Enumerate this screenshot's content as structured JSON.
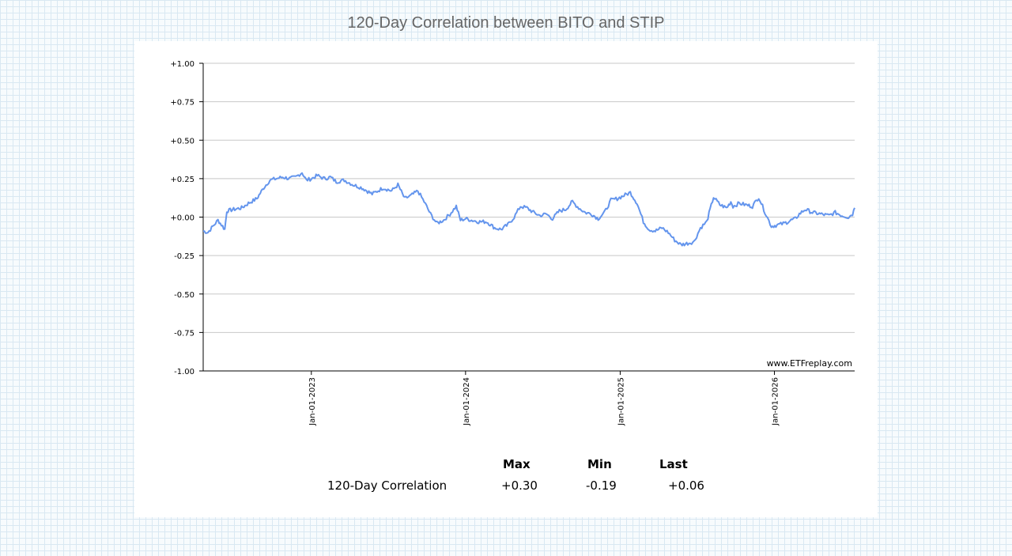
{
  "title": "120-Day Correlation between BITO and STIP",
  "watermark": "www.ETFreplay.com",
  "colors": {
    "line": "#6495ED",
    "grid": "#c8c8c8",
    "axis": "#000000"
  },
  "chart_data": {
    "type": "line",
    "title": "120-Day Correlation between BITO and STIP",
    "xlabel": "",
    "ylabel": "",
    "ylim": [
      -1.0,
      1.0
    ],
    "xlim": [
      "2022-04-20",
      "2026-07-10"
    ],
    "y_ticks": [
      "+1.00",
      "+0.75",
      "+0.50",
      "+0.25",
      "+0.00",
      "-0.25",
      "-0.50",
      "-0.75",
      "-1.00"
    ],
    "y_tick_values": [
      1.0,
      0.75,
      0.5,
      0.25,
      0.0,
      -0.25,
      -0.5,
      -0.75,
      -1.0
    ],
    "x_ticks": [
      "Jan-01-2023",
      "Jan-01-2024",
      "Jan-01-2025",
      "Jan-01-2026"
    ],
    "x_tick_values": [
      "2023-01-01",
      "2024-01-01",
      "2025-01-01",
      "2026-01-01"
    ],
    "grid": true,
    "series": [
      {
        "x": [
          "2022-04-20",
          "2022-05-01",
          "2022-05-10",
          "2022-05-25",
          "2022-06-05",
          "2022-06-10",
          "2022-06-15",
          "2022-07-01",
          "2022-07-20",
          "2022-08-05",
          "2022-08-25",
          "2022-09-10",
          "2022-09-25",
          "2022-10-10",
          "2022-10-25",
          "2022-11-10",
          "2022-11-25",
          "2022-12-10",
          "2022-12-20",
          "2023-01-01",
          "2023-01-15",
          "2023-02-01",
          "2023-02-15",
          "2023-03-01",
          "2023-03-20",
          "2023-04-10",
          "2023-05-01",
          "2023-05-25",
          "2023-06-20",
          "2023-07-10",
          "2023-07-25",
          "2023-08-10",
          "2023-08-25",
          "2023-09-10",
          "2023-09-25",
          "2023-10-10",
          "2023-10-25",
          "2023-11-10",
          "2023-11-25",
          "2023-12-10",
          "2023-12-20",
          "2024-01-01",
          "2024-01-15",
          "2024-02-01",
          "2024-02-20",
          "2024-03-10",
          "2024-03-25",
          "2024-04-10",
          "2024-04-25",
          "2024-05-10",
          "2024-05-25",
          "2024-06-10",
          "2024-06-25",
          "2024-07-10",
          "2024-07-25",
          "2024-08-10",
          "2024-08-25",
          "2024-09-10",
          "2024-09-25",
          "2024-10-10",
          "2024-10-25",
          "2024-11-10",
          "2024-11-25",
          "2024-12-10",
          "2024-12-25",
          "2025-01-10",
          "2025-01-25",
          "2025-02-10",
          "2025-02-25",
          "2025-03-10",
          "2025-03-25",
          "2025-04-10",
          "2025-04-25",
          "2025-05-10",
          "2025-05-25",
          "2025-06-10",
          "2025-06-25",
          "2025-07-10",
          "2025-07-25",
          "2025-08-10",
          "2025-08-25",
          "2025-09-10",
          "2025-09-20",
          "2025-09-25",
          "2025-10-10",
          "2025-10-25",
          "2025-11-10",
          "2025-11-25",
          "2025-12-10",
          "2025-12-25",
          "2026-01-10",
          "2026-01-25",
          "2026-02-10",
          "2026-02-20",
          "2026-03-01",
          "2026-03-15",
          "2026-04-01",
          "2026-04-20",
          "2026-05-10",
          "2026-05-25",
          "2026-06-10",
          "2026-06-25",
          "2026-07-05",
          "2026-07-10"
        ],
        "y": [
          -0.09,
          -0.1,
          -0.07,
          -0.02,
          -0.06,
          -0.08,
          0.04,
          0.05,
          0.06,
          0.09,
          0.12,
          0.19,
          0.24,
          0.25,
          0.26,
          0.25,
          0.26,
          0.29,
          0.24,
          0.25,
          0.27,
          0.25,
          0.26,
          0.23,
          0.24,
          0.21,
          0.19,
          0.15,
          0.19,
          0.17,
          0.21,
          0.12,
          0.14,
          0.17,
          0.1,
          0.02,
          -0.04,
          -0.02,
          0.02,
          0.07,
          -0.02,
          -0.01,
          -0.02,
          -0.03,
          -0.03,
          -0.07,
          -0.08,
          -0.05,
          0.0,
          0.07,
          0.06,
          0.03,
          0.01,
          0.02,
          -0.01,
          0.04,
          0.05,
          0.1,
          0.06,
          0.03,
          0.02,
          -0.01,
          0.03,
          0.11,
          0.12,
          0.14,
          0.16,
          0.09,
          -0.03,
          -0.08,
          -0.09,
          -0.07,
          -0.1,
          -0.15,
          -0.18,
          -0.17,
          -0.16,
          -0.07,
          -0.03,
          0.13,
          0.08,
          0.06,
          0.1,
          0.07,
          0.09,
          0.08,
          0.07,
          0.13,
          0.03,
          -0.06,
          -0.05,
          -0.04,
          -0.02,
          -0.01,
          0.02,
          0.05,
          0.03,
          0.02,
          0.01,
          0.03,
          0.01,
          0.0,
          0.02,
          0.06
        ]
      }
    ]
  },
  "stats_table": {
    "headers": [
      "Max",
      "Min",
      "Last"
    ],
    "row_label": "120-Day Correlation",
    "values": [
      "+0.30",
      "-0.19",
      "+0.06"
    ]
  }
}
